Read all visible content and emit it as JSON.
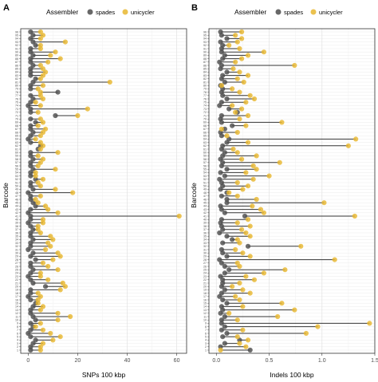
{
  "legend": {
    "title": "Assembler",
    "items": [
      {
        "label": "spades",
        "color": "#4d4d4d"
      },
      {
        "label": "unicycler",
        "color": "#e8b730"
      }
    ]
  },
  "chart_data": [
    {
      "type": "dumbbell",
      "panel_label": "A",
      "xlabel": "SNPs 100 kbp",
      "ylabel": "Barcode",
      "xlim": [
        -3,
        64
      ],
      "xticks": [
        0,
        20,
        40,
        60
      ],
      "grid": true,
      "legend_position": "top",
      "categories": [
        "1",
        "2",
        "3",
        "4",
        "5",
        "6",
        "7",
        "8",
        "9",
        "10",
        "11",
        "12",
        "13",
        "14",
        "15",
        "16",
        "17",
        "18",
        "19",
        "20",
        "21",
        "22",
        "23",
        "24",
        "25",
        "26",
        "27",
        "28",
        "29",
        "30",
        "31",
        "32",
        "33",
        "34",
        "35",
        "36",
        "37",
        "38",
        "39",
        "40",
        "41",
        "42",
        "43",
        "44",
        "45",
        "46",
        "47",
        "48",
        "49",
        "50",
        "51",
        "52",
        "53",
        "54",
        "55",
        "56",
        "57",
        "58",
        "59",
        "60",
        "61",
        "62",
        "63",
        "64",
        "65",
        "66",
        "67",
        "68",
        "69",
        "70",
        "71",
        "72",
        "73",
        "74",
        "75",
        "76",
        "77",
        "78",
        "79",
        "80",
        "81",
        "82",
        "83",
        "84",
        "85",
        "86",
        "87",
        "88",
        "89",
        "90",
        "91",
        "92",
        "93",
        "94",
        "95",
        "96"
      ],
      "series": [
        {
          "name": "spades",
          "values": [
            1,
            1,
            2,
            3,
            1,
            0,
            1,
            2,
            1,
            3,
            2,
            1,
            1,
            2,
            3,
            1,
            0,
            1,
            1,
            7,
            2,
            1,
            0,
            1,
            2,
            1,
            1,
            3,
            1,
            2,
            0,
            1,
            1,
            2,
            1,
            1,
            2,
            1,
            0,
            1,
            1,
            0,
            1,
            3,
            2,
            1,
            1,
            0,
            2,
            1,
            1,
            3,
            1,
            1,
            2,
            1,
            1,
            2,
            1,
            1,
            4,
            5,
            1,
            0,
            1,
            2,
            1,
            1,
            3,
            1,
            11,
            1,
            1,
            0,
            1,
            2,
            1,
            12,
            1,
            1,
            2,
            3,
            1,
            1,
            1,
            2,
            1,
            1,
            2,
            1,
            1,
            3,
            2,
            1,
            2,
            1
          ]
        },
        {
          "name": "unicycler",
          "values": [
            5,
            5,
            6,
            10,
            13,
            9,
            6,
            3,
            5,
            12,
            17,
            12,
            5,
            6,
            4,
            4,
            5,
            4,
            13,
            15,
            14,
            8,
            5,
            5,
            12,
            8,
            6,
            10,
            13,
            12,
            7,
            9,
            8,
            10,
            9,
            5,
            4,
            4,
            6,
            6,
            61,
            12,
            8,
            7,
            4,
            3,
            5,
            18,
            11,
            5,
            4,
            6,
            3,
            3,
            11,
            4,
            5,
            6,
            4,
            12,
            5,
            6,
            5,
            3,
            5,
            6,
            7,
            4,
            6,
            5,
            20,
            4,
            24,
            5,
            3,
            6,
            5,
            5,
            4,
            6,
            33,
            5,
            6,
            7,
            6,
            5,
            8,
            13,
            9,
            11,
            5,
            5,
            15,
            5,
            6,
            5
          ]
        }
      ]
    },
    {
      "type": "dumbbell",
      "panel_label": "B",
      "xlabel": "Indels 100 kbp",
      "ylabel": "Barcode",
      "xlim": [
        -0.07,
        1.5
      ],
      "xticks": [
        0.0,
        0.5,
        1.0,
        1.5
      ],
      "grid": true,
      "legend_position": "top",
      "categories": [
        "1",
        "2",
        "3",
        "4",
        "5",
        "6",
        "7",
        "8",
        "9",
        "10",
        "11",
        "12",
        "13",
        "14",
        "15",
        "16",
        "17",
        "18",
        "19",
        "20",
        "21",
        "22",
        "23",
        "24",
        "25",
        "26",
        "27",
        "28",
        "29",
        "30",
        "31",
        "32",
        "33",
        "34",
        "35",
        "36",
        "37",
        "38",
        "39",
        "40",
        "41",
        "42",
        "43",
        "44",
        "45",
        "46",
        "47",
        "48",
        "49",
        "50",
        "51",
        "52",
        "53",
        "54",
        "55",
        "56",
        "57",
        "58",
        "59",
        "60",
        "61",
        "62",
        "63",
        "64",
        "65",
        "66",
        "67",
        "68",
        "69",
        "70",
        "71",
        "72",
        "73",
        "74",
        "75",
        "76",
        "77",
        "78",
        "79",
        "80",
        "81",
        "82",
        "83",
        "84",
        "85",
        "86",
        "87",
        "88",
        "89",
        "90",
        "91",
        "92",
        "93",
        "94",
        "95",
        "96"
      ],
      "series": [
        {
          "name": "spades",
          "values": [
            0.32,
            0.04,
            0.08,
            0.22,
            0.06,
            0.1,
            0.05,
            0.08,
            0.05,
            0.05,
            0.08,
            0.04,
            0.06,
            0.05,
            0.1,
            0.06,
            0.03,
            0.05,
            0.08,
            0.05,
            0.06,
            0.06,
            0.04,
            0.08,
            0.12,
            0.08,
            0.05,
            0.03,
            0.1,
            0.06,
            0.05,
            0.3,
            0.06,
            0.15,
            0.1,
            0.03,
            0.06,
            0.05,
            0.04,
            0.05,
            0.27,
            0.08,
            0.05,
            0.04,
            0.1,
            0.1,
            0.05,
            0.1,
            0.04,
            0.06,
            0.05,
            0.03,
            0.08,
            0.04,
            0.1,
            0.05,
            0.06,
            0.04,
            0.06,
            0.08,
            0.05,
            0.06,
            0.1,
            0.12,
            0.05,
            0.04,
            0.08,
            0.15,
            0.05,
            0.04,
            0.05,
            0.2,
            0.12,
            0.03,
            0.05,
            0.1,
            0.06,
            0.05,
            0.06,
            0.04,
            0.08,
            0.05,
            0.06,
            0.1,
            0.04,
            0.05,
            0.03,
            0.06,
            0.08,
            0.05,
            0.05,
            0.06,
            0.04,
            0.1,
            0.05,
            0.04
          ]
        },
        {
          "name": "unicycler",
          "values": [
            0.04,
            0.28,
            0.22,
            0.3,
            0.2,
            0.85,
            0.25,
            0.96,
            1.45,
            0.2,
            0.58,
            0.12,
            0.74,
            0.25,
            0.62,
            0.22,
            0.18,
            0.32,
            0.25,
            0.15,
            0.22,
            0.36,
            0.28,
            0.45,
            0.65,
            0.22,
            0.2,
            1.12,
            0.32,
            0.25,
            0.18,
            0.8,
            0.22,
            0.2,
            0.32,
            0.28,
            0.24,
            0.32,
            0.2,
            0.3,
            1.31,
            0.45,
            0.42,
            0.34,
            1.02,
            0.38,
            0.2,
            0.12,
            0.25,
            0.3,
            0.2,
            0.35,
            0.5,
            0.28,
            0.38,
            0.35,
            0.6,
            0.24,
            0.38,
            0.2,
            0.16,
            1.25,
            0.3,
            1.32,
            0.1,
            0.2,
            0.05,
            0.28,
            0.62,
            0.22,
            0.3,
            0.18,
            0.24,
            0.15,
            0.28,
            0.36,
            0.32,
            0.22,
            0.15,
            0.05,
            0.26,
            0.2,
            0.3,
            0.22,
            0.16,
            0.74,
            0.18,
            0.24,
            0.3,
            0.45,
            0.22,
            0.12,
            0.2,
            0.24,
            0.18,
            0.24
          ]
        }
      ]
    }
  ]
}
